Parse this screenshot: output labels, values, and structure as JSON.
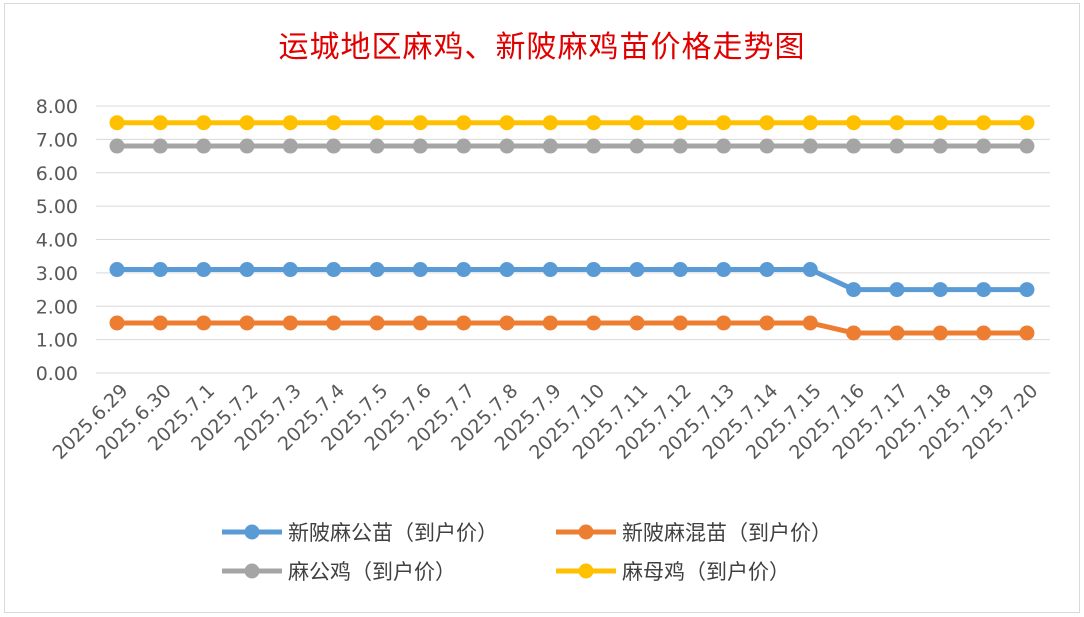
{
  "chart_data": {
    "type": "line",
    "title": "运城地区麻鸡、新陂麻鸡苗价格走势图",
    "xlabel": "",
    "ylabel": "",
    "ylim": [
      0,
      8
    ],
    "yticks": [
      "0.00",
      "1.00",
      "2.00",
      "3.00",
      "4.00",
      "5.00",
      "6.00",
      "7.00",
      "8.00"
    ],
    "categories": [
      "2025.6.29",
      "2025.6.30",
      "2025.7.1",
      "2025.7.2",
      "2025.7.3",
      "2025.7.4",
      "2025.7.5",
      "2025.7.6",
      "2025.7.7",
      "2025.7.8",
      "2025.7.9",
      "2025.7.10",
      "2025.7.11",
      "2025.7.12",
      "2025.7.13",
      "2025.7.14",
      "2025.7.15",
      "2025.7.16",
      "2025.7.17",
      "2025.7.18",
      "2025.7.19",
      "2025.7.20"
    ],
    "grid": true,
    "legend_position": "bottom",
    "series": [
      {
        "name": "新陂麻公苗（到户价）",
        "color": "#5b9bd5",
        "values": [
          3.1,
          3.1,
          3.1,
          3.1,
          3.1,
          3.1,
          3.1,
          3.1,
          3.1,
          3.1,
          3.1,
          3.1,
          3.1,
          3.1,
          3.1,
          3.1,
          3.1,
          2.5,
          2.5,
          2.5,
          2.5,
          2.5
        ]
      },
      {
        "name": "新陂麻混苗（到户价）",
        "color": "#ed7d31",
        "values": [
          1.5,
          1.5,
          1.5,
          1.5,
          1.5,
          1.5,
          1.5,
          1.5,
          1.5,
          1.5,
          1.5,
          1.5,
          1.5,
          1.5,
          1.5,
          1.5,
          1.5,
          1.2,
          1.2,
          1.2,
          1.2,
          1.2
        ]
      },
      {
        "name": "麻公鸡（到户价）",
        "color": "#a5a5a5",
        "values": [
          6.8,
          6.8,
          6.8,
          6.8,
          6.8,
          6.8,
          6.8,
          6.8,
          6.8,
          6.8,
          6.8,
          6.8,
          6.8,
          6.8,
          6.8,
          6.8,
          6.8,
          6.8,
          6.8,
          6.8,
          6.8,
          6.8
        ]
      },
      {
        "name": "麻母鸡（到户价）",
        "color": "#ffc000",
        "values": [
          7.5,
          7.5,
          7.5,
          7.5,
          7.5,
          7.5,
          7.5,
          7.5,
          7.5,
          7.5,
          7.5,
          7.5,
          7.5,
          7.5,
          7.5,
          7.5,
          7.5,
          7.5,
          7.5,
          7.5,
          7.5,
          7.5
        ]
      }
    ]
  }
}
